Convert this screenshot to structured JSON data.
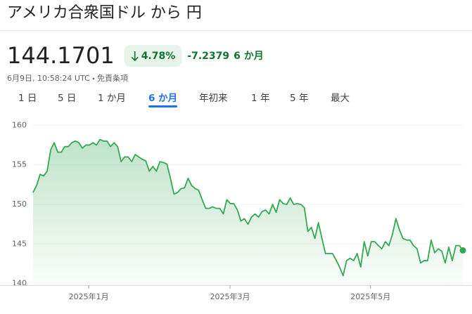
{
  "header": {
    "title": "アメリカ合衆国ドル から 円"
  },
  "quote": {
    "price": "144.1701",
    "change_percent": "4.78%",
    "change": "-7.2379",
    "period": "6 か月",
    "timestamp": "6月9日, 10:58:24 UTC",
    "disclaimer": "免責条項"
  },
  "tabs": {
    "items": [
      "1 日",
      "5 日",
      "1 か月",
      "6 か月",
      "年初来",
      "1 年",
      "5 年",
      "最大"
    ],
    "active": 3
  },
  "chart_data": {
    "type": "line",
    "series": [
      {
        "color": "#34a853",
        "values": [
          151.5,
          152.4,
          153.8,
          153.6,
          154.2,
          156.9,
          157.8,
          156.6,
          156.6,
          157.3,
          157.3,
          157.8,
          158.0,
          157.8,
          157.1,
          157.5,
          157.5,
          157.8,
          157.5,
          158.2,
          158.0,
          158.0,
          157.3,
          157.8,
          157.3,
          155.4,
          156.0,
          156.0,
          155.4,
          156.3,
          156.0,
          155.7,
          155.5,
          154.2,
          154.8,
          154.2,
          155.4,
          155.3,
          155.1,
          153.3,
          151.3,
          151.5,
          152.0,
          152.1,
          153.3,
          152.4,
          152.0,
          151.8,
          150.6,
          149.5,
          149.5,
          149.7,
          149.5,
          149.5,
          148.8,
          150.6,
          150.1,
          150.1,
          149.3,
          147.9,
          148.2,
          147.5,
          148.4,
          148.8,
          148.4,
          149.1,
          149.3,
          148.8,
          150.0,
          149.0,
          150.6,
          150.1,
          150.0,
          150.8,
          150.0,
          150.1,
          150.0,
          149.6,
          146.6,
          147.1,
          145.7,
          147.7,
          145.7,
          143.8,
          143.8,
          143.8,
          143.0,
          142.1,
          141.0,
          142.9,
          143.2,
          142.9,
          143.8,
          142.1,
          145.3,
          143.5,
          145.3,
          145.3,
          144.8,
          144.4,
          145.3,
          144.8,
          146.2,
          148.2,
          146.8,
          145.7,
          145.5,
          145.5,
          144.8,
          144.4,
          142.6,
          142.9,
          142.9,
          145.5,
          143.9,
          144.4,
          144.1,
          142.6,
          144.6,
          142.9,
          144.8,
          144.8,
          144.2
        ]
      }
    ],
    "xlim": [
      0,
      122
    ],
    "xticks": [
      {
        "value": 15.8,
        "label": "2025年1月"
      },
      {
        "value": 55.9,
        "label": "2025年3月"
      },
      {
        "value": 95.8,
        "label": "2025年5月"
      }
    ],
    "ylim": [
      139.8,
      161
    ],
    "yticks": [
      140,
      145,
      150,
      155,
      160
    ],
    "grid": true
  }
}
